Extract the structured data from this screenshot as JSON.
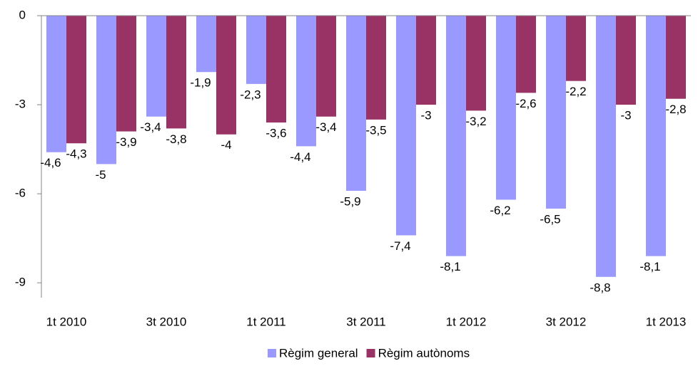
{
  "chart_data": {
    "type": "bar",
    "categories": [
      "1t 2010",
      null,
      "3t 2010",
      null,
      "1t 2011",
      null,
      "3t 2011",
      null,
      "1t 2012",
      null,
      "3t 2012",
      null,
      "1t 2013"
    ],
    "series": [
      {
        "name": "Règim general",
        "color": "#9999ff",
        "values": [
          -4.6,
          -5,
          -3.4,
          -1.9,
          -2.3,
          -4.4,
          -5.9,
          -7.4,
          -8.1,
          -6.2,
          -6.5,
          -8.8,
          -8.1
        ],
        "value_labels": [
          "-4,6",
          "-5",
          "-3,4",
          "-1,9",
          "-2,3",
          "-4,4",
          "-5,9",
          "-7,4",
          "-8,1",
          "-6,2",
          "-6,5",
          "-8,8",
          "-8,1"
        ]
      },
      {
        "name": "Règim autònoms",
        "color": "#993366",
        "values": [
          -4.3,
          -3.9,
          -3.8,
          -4,
          -3.6,
          -3.4,
          -3.5,
          -3,
          -3.2,
          -2.6,
          -2.2,
          -3,
          -2.8
        ],
        "value_labels": [
          "-4,3",
          "-3,9",
          "-3,8",
          "-4",
          "-3,6",
          "-3,4",
          "-3,5",
          "-3",
          "-3,2",
          "-2,6",
          "-2,2",
          "-3",
          "-2,8"
        ]
      }
    ],
    "ylim": [
      -9.5,
      0
    ],
    "yticks": [
      0,
      -3,
      -6,
      -9
    ],
    "grid": false,
    "legend": "bottom"
  }
}
